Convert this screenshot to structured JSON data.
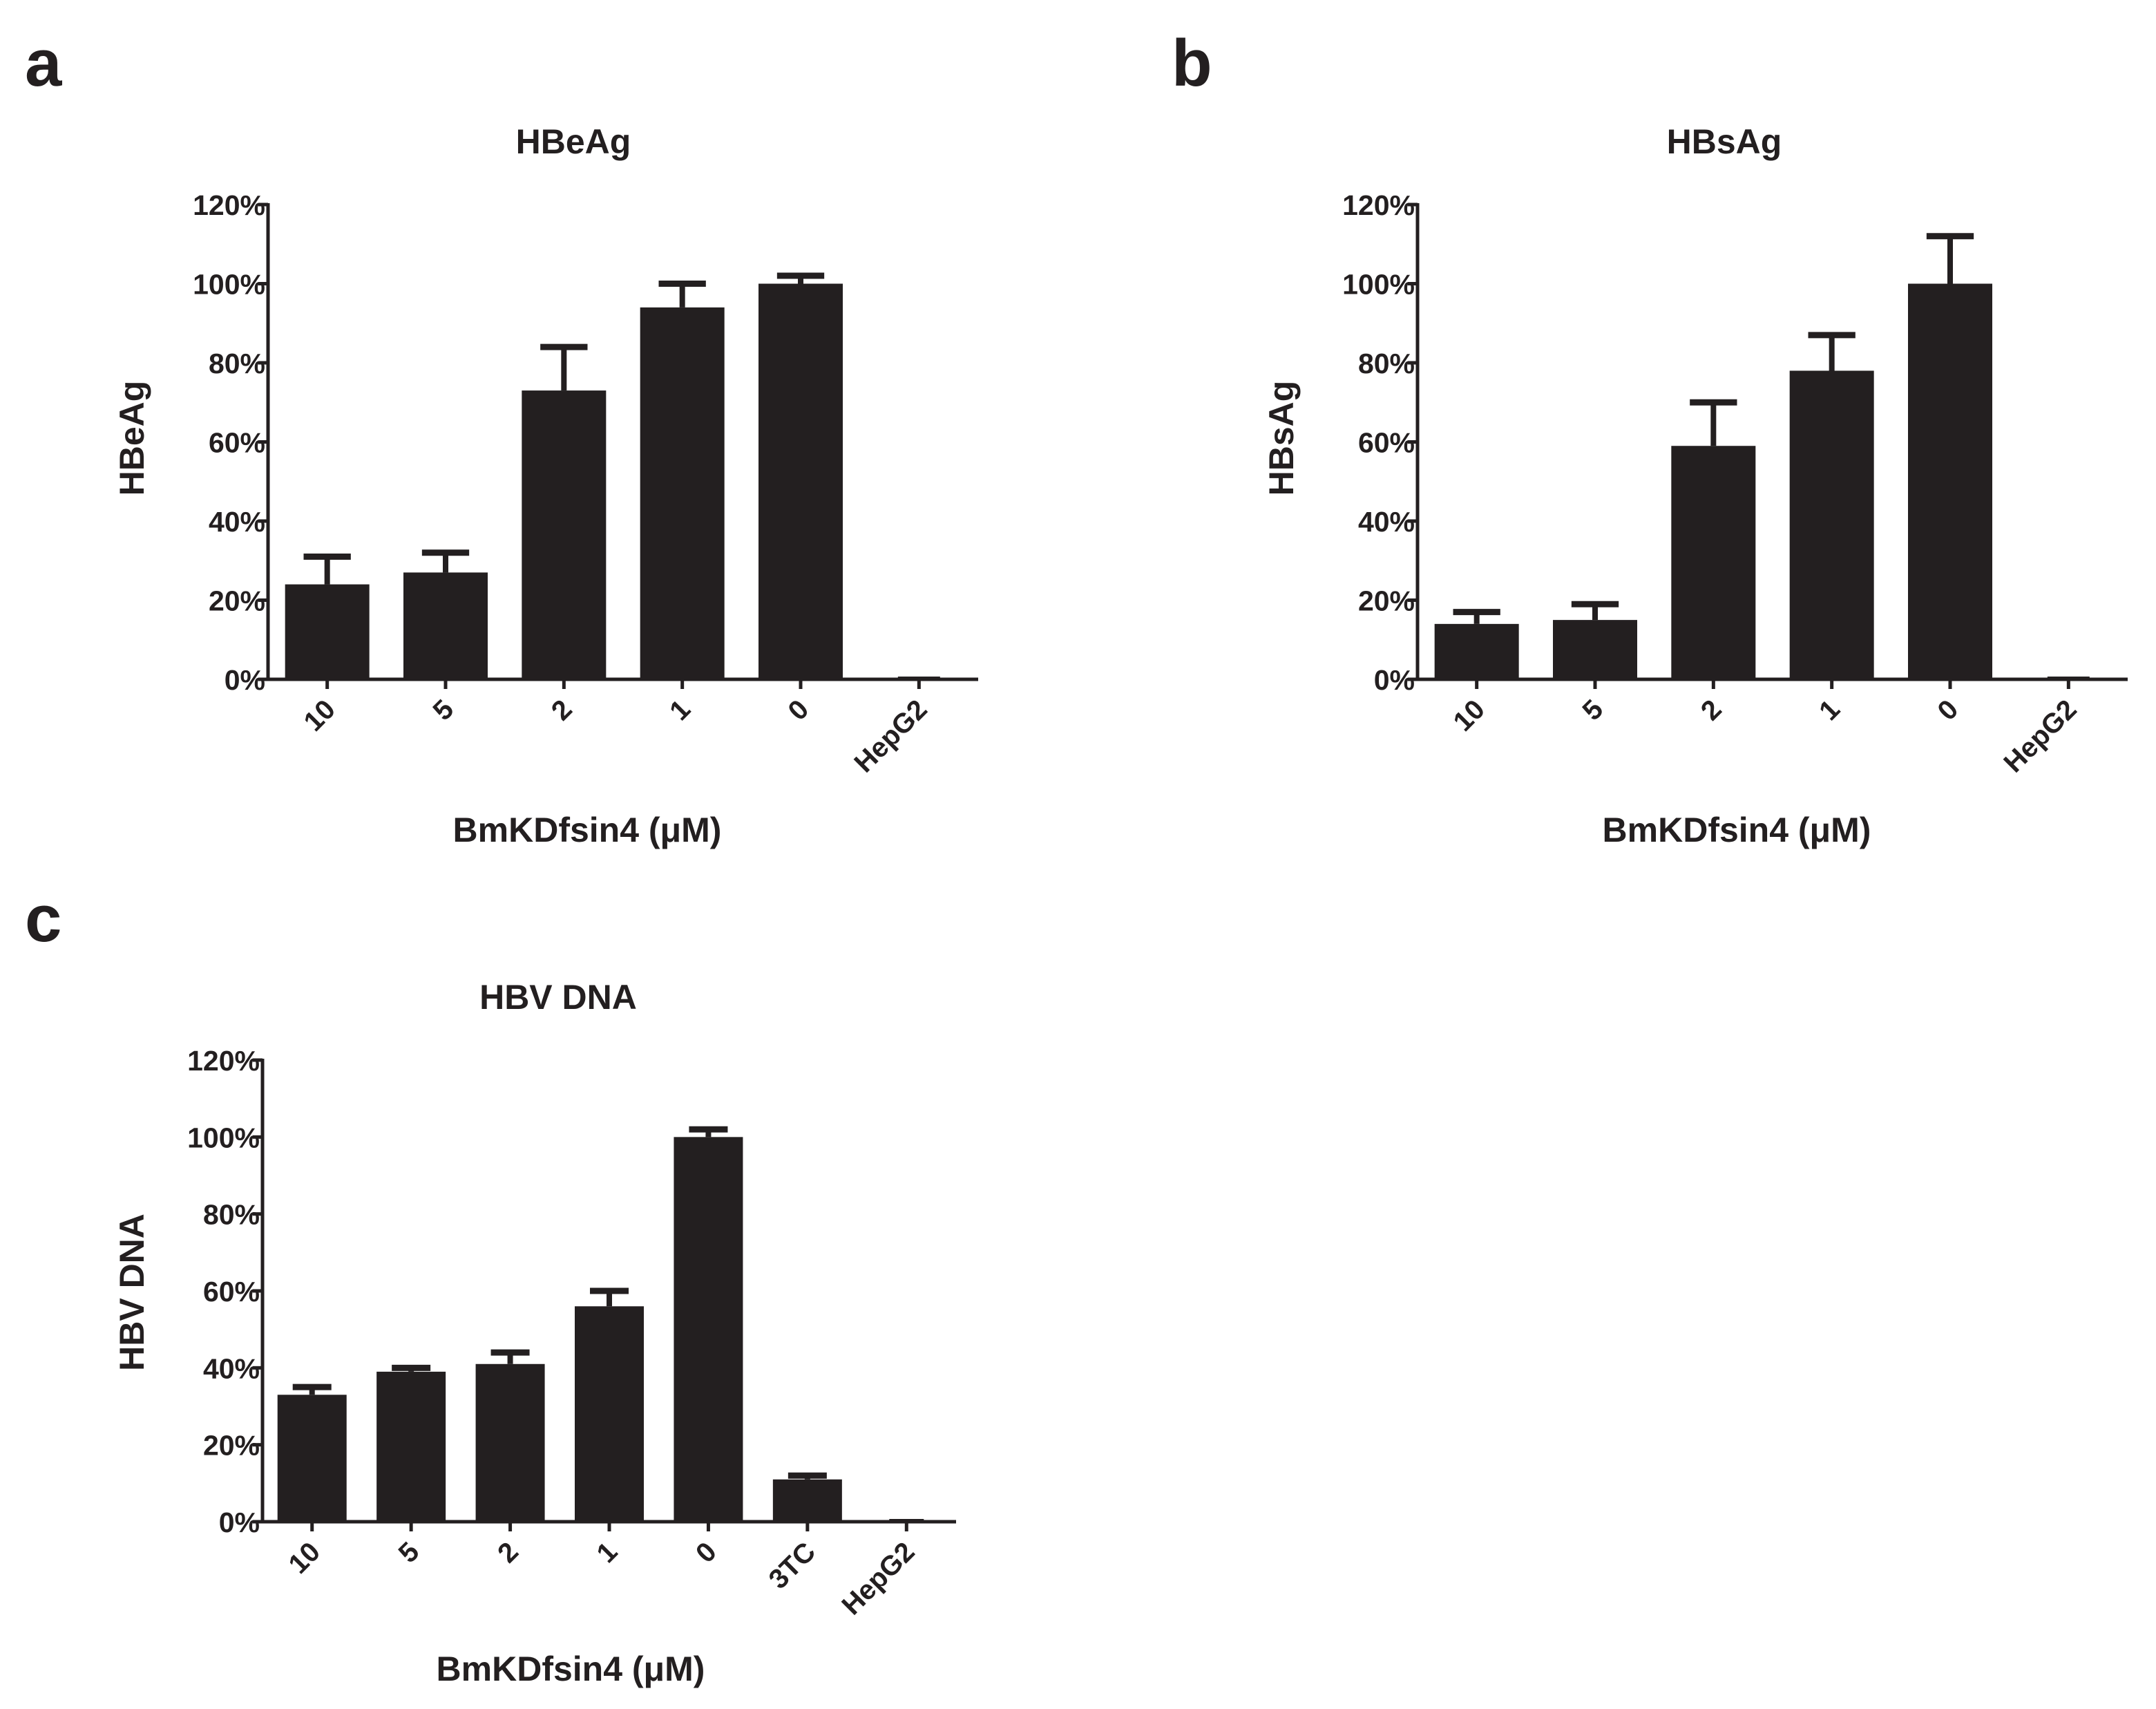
{
  "colors": {
    "bar": "#231f20",
    "axis": "#231f20",
    "background": "#ffffff"
  },
  "chart_data": [
    {
      "panel": "a",
      "type": "bar",
      "title": "HBeAg",
      "xlabel": "BmKDfsin4 (μM)",
      "ylabel": "HBeAg",
      "ylim": [
        0,
        120
      ],
      "yticks": [
        "0%",
        "20%",
        "40%",
        "60%",
        "80%",
        "100%",
        "120%"
      ],
      "categories": [
        "10",
        "5",
        "2",
        "1",
        "0",
        "HepG2"
      ],
      "values": [
        24,
        27,
        73,
        94,
        100,
        0
      ],
      "errors": [
        7,
        5,
        11,
        6,
        2,
        0
      ]
    },
    {
      "panel": "b",
      "type": "bar",
      "title": "HBsAg",
      "xlabel": "BmKDfsin4 (μM)",
      "ylabel": "HBsAg",
      "ylim": [
        0,
        120
      ],
      "yticks": [
        "0%",
        "20%",
        "40%",
        "60%",
        "80%",
        "100%",
        "120%"
      ],
      "categories": [
        "10",
        "5",
        "2",
        "1",
        "0",
        "HepG2"
      ],
      "values": [
        14,
        15,
        59,
        78,
        100,
        0
      ],
      "errors": [
        3,
        4,
        11,
        9,
        12,
        0
      ]
    },
    {
      "panel": "c",
      "type": "bar",
      "title": "HBV DNA",
      "xlabel": "BmKDfsin4 (μM)",
      "ylabel": "HBV DNA",
      "ylim": [
        0,
        120
      ],
      "yticks": [
        "0%",
        "20%",
        "40%",
        "60%",
        "80%",
        "100%",
        "120%"
      ],
      "categories": [
        "10",
        "5",
        "2",
        "1",
        "0",
        "3TC",
        "HepG2"
      ],
      "values": [
        33,
        39,
        41,
        56,
        100,
        11,
        0
      ],
      "errors": [
        2,
        1,
        3,
        4,
        2,
        1,
        0
      ]
    }
  ]
}
